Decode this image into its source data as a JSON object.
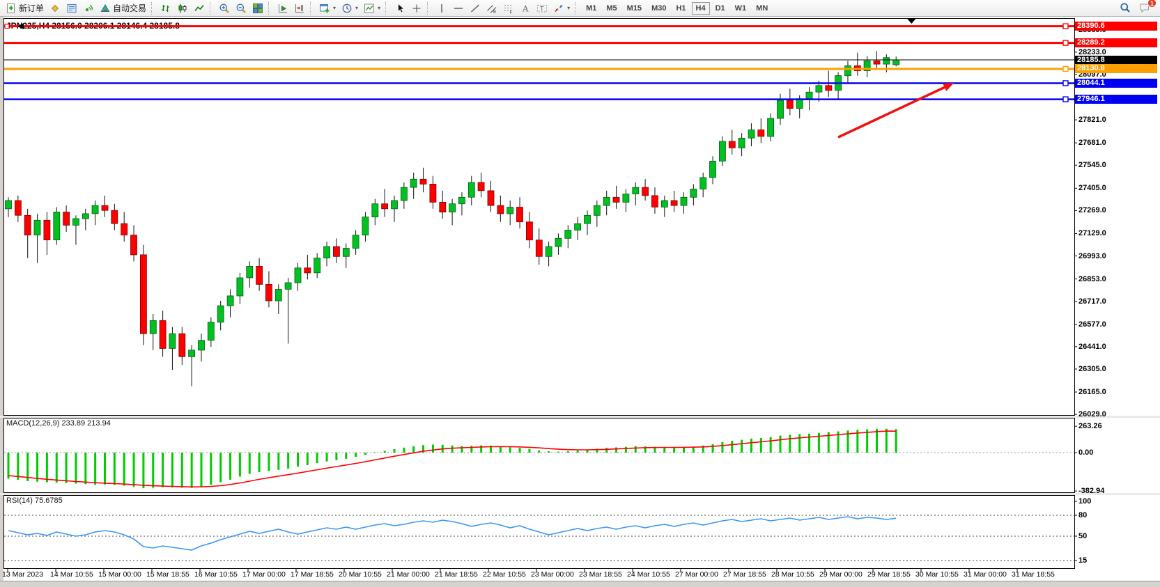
{
  "toolbar": {
    "groups": [
      [
        {
          "name": "new-order",
          "icon": "new-order",
          "label": "新订单"
        },
        {
          "name": "market-watch",
          "icon": "market-watch"
        },
        {
          "name": "data-window",
          "icon": "data-window"
        },
        {
          "name": "signals",
          "icon": "signals"
        },
        {
          "name": "autotrading",
          "icon": "autotrading",
          "label": "自动交易"
        }
      ],
      [
        {
          "name": "chart-bars",
          "icon": "chart-bars"
        },
        {
          "name": "chart-candles",
          "icon": "chart-candles"
        },
        {
          "name": "chart-line",
          "icon": "chart-line"
        }
      ],
      [
        {
          "name": "zoom-in",
          "icon": "zoom-in"
        },
        {
          "name": "zoom-out",
          "icon": "zoom-out"
        },
        {
          "name": "tile-windows",
          "icon": "tile-windows"
        }
      ],
      [
        {
          "name": "auto-scroll",
          "icon": "auto-scroll"
        },
        {
          "name": "chart-shift",
          "icon": "chart-shift"
        }
      ],
      [
        {
          "name": "new-chart",
          "icon": "new-chart",
          "dropdown": true
        },
        {
          "name": "profiles",
          "icon": "profiles",
          "dropdown": true
        },
        {
          "name": "indicators",
          "icon": "indicators",
          "dropdown": true
        }
      ],
      [
        {
          "name": "cursor",
          "icon": "cursor"
        },
        {
          "name": "crosshair",
          "icon": "crosshair"
        }
      ],
      [
        {
          "name": "vertical-line",
          "icon": "vline"
        },
        {
          "name": "horizontal-line",
          "icon": "hline"
        },
        {
          "name": "trendline",
          "icon": "trendline"
        },
        {
          "name": "equidistant-channel",
          "icon": "channel"
        },
        {
          "name": "fibonacci",
          "icon": "fibo"
        },
        {
          "name": "text",
          "icon": "text-a"
        },
        {
          "name": "text-label",
          "icon": "text-label"
        },
        {
          "name": "arrows",
          "icon": "arrows-tool",
          "dropdown": true
        }
      ]
    ],
    "timeframes": [
      "M1",
      "M5",
      "M15",
      "M30",
      "H1",
      "H4",
      "D1",
      "W1",
      "MN"
    ],
    "active_timeframe": "H4",
    "notifications_badge": "1"
  },
  "chart": {
    "title": "JPN225,H4 28156.0 28206.1 28146.4 28185.8",
    "symbol": "JPN225",
    "period": "H4",
    "open": "28156.0",
    "high": "28206.1",
    "low": "28146.4",
    "close": "28185.8"
  },
  "indicators": {
    "macd_label": "MACD(12,26,9) 233.89 213.94",
    "rsi_label": "RSI(14) 75.6785"
  },
  "chart_data": {
    "type": "candlestick",
    "symbol": "JPN225",
    "timeframe": "H4",
    "ylim": [
      26021,
      28440
    ],
    "colors": {
      "bull": "#00c022",
      "bull_stroke": "#045f12",
      "bear": "#ff0000",
      "bear_stroke": "#7c0404",
      "wick": "#111111",
      "macd_hist": "#00cc00",
      "macd_signal": "#ff0000",
      "rsi": "#3a96f5",
      "level_dash": "#444444"
    },
    "price_axis_ticks": [
      28369.0,
      28233.0,
      28097.0,
      27821.0,
      27681.0,
      27545.0,
      27405.0,
      27269.0,
      27129.0,
      26993.0,
      26853.0,
      26717.0,
      26577.0,
      26441.0,
      26305.0,
      26165.0,
      26029.0
    ],
    "price_tags": [
      {
        "value": "28390.6",
        "color": "#ff0000"
      },
      {
        "value": "28289.2",
        "color": "#ff0000"
      },
      {
        "value": "28185.8",
        "color": "#000000"
      },
      {
        "value": "28130.8",
        "color": "#ff9f00"
      },
      {
        "value": "28044.1",
        "color": "#0000f0"
      },
      {
        "value": "27946.1",
        "color": "#0000f0"
      }
    ],
    "horizontal_lines": [
      {
        "price": 28390.6,
        "color": "#ff0000",
        "width": 3,
        "end_marker": true,
        "left_anchor": true
      },
      {
        "price": 28289.2,
        "color": "#ff0000",
        "width": 3,
        "end_marker": true
      },
      {
        "price": 28185.8,
        "color": "#000000",
        "width": 1,
        "role": "current-price"
      },
      {
        "price": 28130.8,
        "color": "#ff9f00",
        "width": 3,
        "end_marker": true
      },
      {
        "price": 28044.1,
        "color": "#0000f0",
        "width": 2.5,
        "end_marker": true
      },
      {
        "price": 27946.1,
        "color": "#0000f0",
        "width": 2.5,
        "end_marker": true
      }
    ],
    "annotations": [
      {
        "type": "arrow",
        "color": "#f01212",
        "from": {
          "bar": 86,
          "price": 27715
        },
        "to": {
          "bar": 98,
          "price": 28046
        }
      },
      {
        "type": "scroll-marker",
        "bar": 93.6
      }
    ],
    "candles_ohlc": [
      [
        27280,
        27350,
        27230,
        27330
      ],
      [
        27330,
        27360,
        27200,
        27240
      ],
      [
        27240,
        27280,
        26980,
        27120
      ],
      [
        27120,
        27250,
        26950,
        27210
      ],
      [
        27210,
        27260,
        27000,
        27090
      ],
      [
        27090,
        27290,
        27060,
        27260
      ],
      [
        27260,
        27300,
        27140,
        27180
      ],
      [
        27180,
        27240,
        27060,
        27220
      ],
      [
        27220,
        27280,
        27150,
        27250
      ],
      [
        27250,
        27330,
        27180,
        27300
      ],
      [
        27300,
        27360,
        27230,
        27270
      ],
      [
        27270,
        27310,
        27150,
        27190
      ],
      [
        27190,
        27260,
        27080,
        27120
      ],
      [
        27120,
        27180,
        26960,
        27000
      ],
      [
        27000,
        27060,
        26450,
        26520
      ],
      [
        26520,
        26640,
        26420,
        26600
      ],
      [
        26600,
        26660,
        26380,
        26430
      ],
      [
        26430,
        26560,
        26300,
        26520
      ],
      [
        26520,
        26560,
        26330,
        26380
      ],
      [
        26380,
        26450,
        26200,
        26420
      ],
      [
        26420,
        26520,
        26350,
        26480
      ],
      [
        26480,
        26620,
        26440,
        26590
      ],
      [
        26590,
        26720,
        26540,
        26690
      ],
      [
        26690,
        26790,
        26620,
        26750
      ],
      [
        26750,
        26890,
        26700,
        26860
      ],
      [
        26860,
        26960,
        26800,
        26930
      ],
      [
        26930,
        26980,
        26780,
        26820
      ],
      [
        26820,
        26900,
        26680,
        26720
      ],
      [
        26720,
        26820,
        26640,
        26790
      ],
      [
        26790,
        26860,
        26460,
        26830
      ],
      [
        26830,
        26950,
        26780,
        26920
      ],
      [
        26920,
        27000,
        26850,
        26890
      ],
      [
        26890,
        27010,
        26860,
        26980
      ],
      [
        26980,
        27080,
        26930,
        27050
      ],
      [
        27050,
        27100,
        26950,
        26990
      ],
      [
        26990,
        27070,
        26920,
        27040
      ],
      [
        27040,
        27150,
        27000,
        27120
      ],
      [
        27120,
        27260,
        27080,
        27230
      ],
      [
        27230,
        27340,
        27180,
        27310
      ],
      [
        27310,
        27400,
        27230,
        27280
      ],
      [
        27280,
        27360,
        27200,
        27330
      ],
      [
        27330,
        27440,
        27280,
        27410
      ],
      [
        27410,
        27500,
        27340,
        27460
      ],
      [
        27460,
        27530,
        27380,
        27430
      ],
      [
        27430,
        27480,
        27280,
        27320
      ],
      [
        27320,
        27390,
        27220,
        27260
      ],
      [
        27260,
        27340,
        27180,
        27310
      ],
      [
        27310,
        27380,
        27240,
        27350
      ],
      [
        27350,
        27480,
        27300,
        27440
      ],
      [
        27440,
        27500,
        27350,
        27390
      ],
      [
        27390,
        27450,
        27260,
        27300
      ],
      [
        27300,
        27360,
        27200,
        27250
      ],
      [
        27250,
        27330,
        27180,
        27290
      ],
      [
        27290,
        27350,
        27160,
        27200
      ],
      [
        27200,
        27260,
        27040,
        27090
      ],
      [
        27090,
        27160,
        26940,
        26990
      ],
      [
        26990,
        27080,
        26930,
        27050
      ],
      [
        27050,
        27130,
        27000,
        27100
      ],
      [
        27100,
        27180,
        27040,
        27150
      ],
      [
        27150,
        27230,
        27090,
        27190
      ],
      [
        27190,
        27270,
        27120,
        27240
      ],
      [
        27240,
        27330,
        27170,
        27300
      ],
      [
        27300,
        27390,
        27240,
        27350
      ],
      [
        27350,
        27420,
        27280,
        27320
      ],
      [
        27320,
        27400,
        27260,
        27370
      ],
      [
        27370,
        27440,
        27300,
        27410
      ],
      [
        27410,
        27460,
        27330,
        27360
      ],
      [
        27360,
        27410,
        27250,
        27290
      ],
      [
        27290,
        27360,
        27230,
        27330
      ],
      [
        27330,
        27390,
        27260,
        27300
      ],
      [
        27300,
        27380,
        27250,
        27350
      ],
      [
        27350,
        27430,
        27300,
        27400
      ],
      [
        27400,
        27500,
        27350,
        27470
      ],
      [
        27470,
        27600,
        27430,
        27570
      ],
      [
        27570,
        27720,
        27540,
        27690
      ],
      [
        27690,
        27760,
        27610,
        27650
      ],
      [
        27650,
        27740,
        27600,
        27710
      ],
      [
        27710,
        27800,
        27660,
        27760
      ],
      [
        27760,
        27830,
        27680,
        27720
      ],
      [
        27720,
        27860,
        27690,
        27830
      ],
      [
        27830,
        27980,
        27790,
        27940
      ],
      [
        27940,
        28010,
        27850,
        27890
      ],
      [
        27890,
        27970,
        27830,
        27950
      ],
      [
        27950,
        28020,
        27880,
        27990
      ],
      [
        27990,
        28060,
        27930,
        28030
      ],
      [
        28030,
        28120,
        27960,
        28000
      ],
      [
        28000,
        28110,
        27950,
        28090
      ],
      [
        28090,
        28180,
        28040,
        28150
      ],
      [
        28150,
        28230,
        28090,
        28120
      ],
      [
        28120,
        28210,
        28080,
        28180
      ],
      [
        28180,
        28240,
        28130,
        28160
      ],
      [
        28160,
        28220,
        28110,
        28200
      ],
      [
        28156,
        28206.1,
        28146.4,
        28185.8
      ]
    ],
    "indicator_panes": {
      "macd": {
        "name": "MACD",
        "params": [
          12,
          26,
          9
        ],
        "last": [
          233.89,
          213.94
        ],
        "axis_ticks": [
          {
            "v": 263.26,
            "label": "263.26"
          },
          {
            "v": 0,
            "label": "0.00"
          },
          {
            "v": -382.94,
            "label": "-382.94"
          }
        ],
        "histogram": [
          -260,
          -270,
          -285,
          -290,
          -295,
          -300,
          -305,
          -310,
          -315,
          -320,
          -318,
          -322,
          -330,
          -340,
          -355,
          -350,
          -345,
          -348,
          -350,
          -352,
          -340,
          -320,
          -295,
          -270,
          -240,
          -212,
          -195,
          -185,
          -172,
          -160,
          -140,
          -125,
          -105,
          -88,
          -76,
          -62,
          -42,
          -22,
          4,
          18,
          34,
          50,
          64,
          74,
          80,
          78,
          71,
          66,
          68,
          72,
          70,
          62,
          54,
          47,
          36,
          22,
          13,
          10,
          14,
          20,
          28,
          38,
          48,
          52,
          58,
          64,
          62,
          58,
          55,
          52,
          54,
          60,
          70,
          85,
          104,
          118,
          128,
          140,
          146,
          155,
          170,
          178,
          185,
          189,
          196,
          205,
          212,
          220,
          228,
          232,
          236,
          238,
          233.89
        ],
        "signal": [
          -230,
          -238,
          -248,
          -258,
          -266,
          -274,
          -281,
          -288,
          -294,
          -300,
          -305,
          -309,
          -314,
          -319,
          -326,
          -331,
          -334,
          -337,
          -340,
          -342,
          -342,
          -338,
          -330,
          -318,
          -303,
          -285,
          -267,
          -251,
          -235,
          -220,
          -204,
          -188,
          -171,
          -155,
          -139,
          -124,
          -108,
          -91,
          -72,
          -54,
          -36,
          -19,
          -2,
          13,
          26,
          37,
          44,
          48,
          52,
          56,
          59,
          60,
          59,
          57,
          53,
          47,
          40,
          34,
          30,
          28,
          28,
          30,
          33,
          37,
          41,
          46,
          49,
          51,
          52,
          52,
          53,
          54,
          57,
          62,
          70,
          79,
          89,
          99,
          108,
          117,
          128,
          138,
          147,
          155,
          163,
          171,
          179,
          187,
          195,
          202,
          209,
          215,
          213.94
        ]
      },
      "rsi": {
        "name": "RSI",
        "params": [
          14
        ],
        "last": 75.6785,
        "levels": [
          80,
          50,
          15
        ],
        "axis_ticks": [
          {
            "v": 100,
            "label": "100"
          },
          {
            "v": 80,
            "label": "80"
          },
          {
            "v": 50,
            "label": "50"
          },
          {
            "v": 15,
            "label": "15"
          }
        ],
        "values": [
          58,
          55,
          52,
          54,
          51,
          56,
          53,
          50,
          52,
          56,
          58,
          56,
          52,
          46,
          35,
          33,
          36,
          34,
          32,
          30,
          36,
          40,
          45,
          49,
          53,
          57,
          54,
          57,
          60,
          56,
          53,
          56,
          59,
          62,
          60,
          63,
          60,
          63,
          66,
          68,
          65,
          67,
          70,
          72,
          70,
          73,
          71,
          68,
          64,
          67,
          69,
          66,
          62,
          65,
          60,
          56,
          52,
          55,
          58,
          61,
          58,
          61,
          63,
          60,
          63,
          65,
          62,
          65,
          67,
          64,
          67,
          69,
          66,
          69,
          72,
          74,
          71,
          73,
          75,
          72,
          74,
          76,
          73,
          75,
          77,
          74,
          76,
          78,
          75,
          77,
          76,
          74,
          75.68
        ]
      }
    },
    "time_labels": [
      "13 Mar 2023",
      "14 Mar 10:55",
      "15 Mar 00:00",
      "15 Mar 18:55",
      "16 Mar 10:55",
      "17 Mar 00:00",
      "17 Mar 18:55",
      "20 Mar 10:55",
      "21 Mar 00:00",
      "21 Mar 18:55",
      "22 Mar 10:55",
      "23 Mar 00:00",
      "23 Mar 18:55",
      "24 Mar 10:55",
      "27 Mar 00:00",
      "27 Mar 18:55",
      "28 Mar 10:55",
      "29 Mar 00:00",
      "29 Mar 18:55",
      "30 Mar 10:55",
      "31 Mar 00:00",
      "31 Mar 18:55"
    ]
  }
}
